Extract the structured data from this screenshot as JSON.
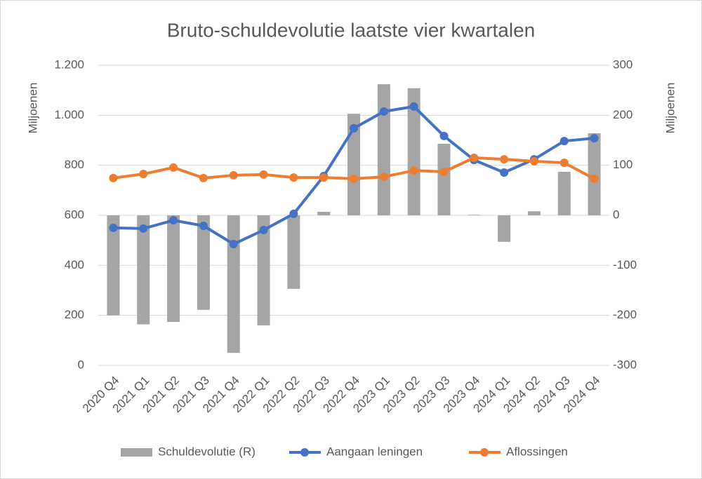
{
  "chart_data": {
    "type": "combo",
    "title": "Bruto-schuldevolutie laatste vier kwartalen",
    "ylabel": "Miljoenen",
    "y2label": "Miljoenen",
    "categories": [
      "2020 Q4",
      "2021 Q1",
      "2021 Q2",
      "2021 Q3",
      "2021 Q4",
      "2022 Q1",
      "2022 Q2",
      "2022 Q3",
      "2022 Q4",
      "2023 Q1",
      "2023 Q2",
      "2023 Q3",
      "2023 Q4",
      "2024 Q1",
      "2024 Q2",
      "2024 Q3",
      "2024 Q4"
    ],
    "ylim": [
      0,
      1200
    ],
    "yticks": [
      0,
      200,
      400,
      600,
      800,
      {
        "value": 1000,
        "label": "1.000"
      },
      {
        "value": 1200,
        "label": "1.200"
      }
    ],
    "y2lim": [
      -300,
      300
    ],
    "y2ticks": [
      -300,
      -200,
      -100,
      0,
      100,
      200,
      300
    ],
    "grid": true,
    "legend": "bottom",
    "series": [
      {
        "name": "Schuldevolutie (R)",
        "type": "bar",
        "axis": "y2",
        "color": "#a5a5a5",
        "values": [
          -200,
          -218,
          -213,
          -189,
          -275,
          -220,
          -147,
          7,
          203,
          262,
          254,
          143,
          1,
          -53,
          8,
          87,
          164
        ]
      },
      {
        "name": "Aangaan leningen",
        "type": "line",
        "color": "#4472c4",
        "values": [
          550,
          547,
          580,
          558,
          485,
          541,
          606,
          757,
          948,
          1015,
          1035,
          917,
          821,
          771,
          824,
          897,
          908
        ]
      },
      {
        "name": "Aflossingen",
        "type": "line",
        "color": "#ed7d31",
        "values": [
          749,
          765,
          791,
          749,
          760,
          763,
          751,
          751,
          746,
          754,
          779,
          774,
          830,
          824,
          816,
          810,
          746
        ]
      }
    ]
  }
}
